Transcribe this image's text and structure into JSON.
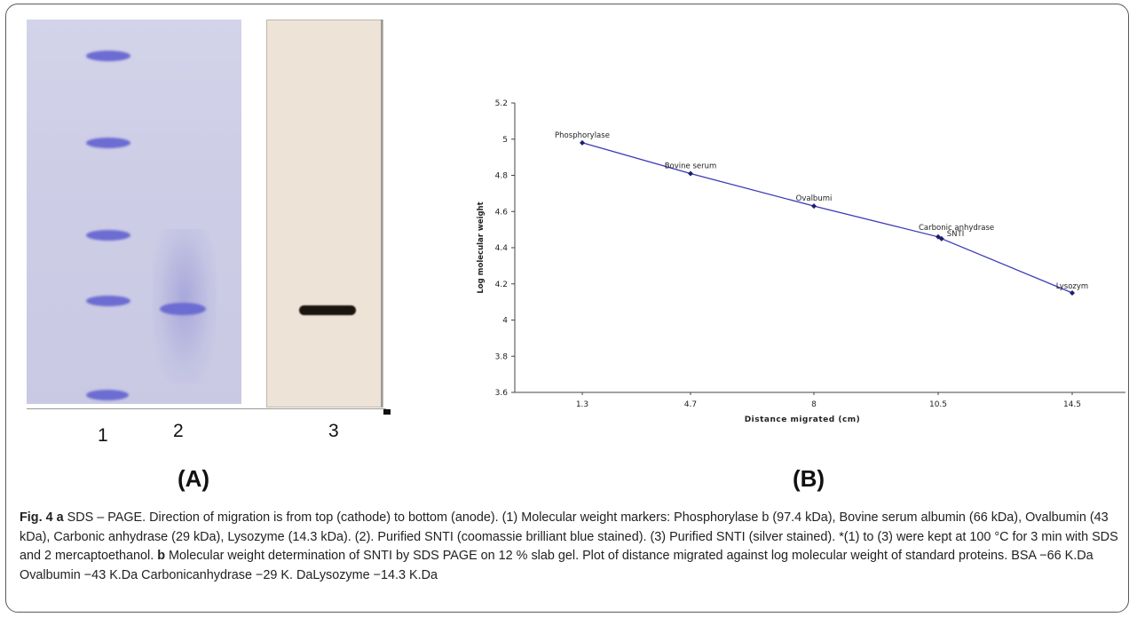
{
  "panels": {
    "a_lanes": [
      "1",
      "2",
      "3"
    ],
    "a_label": "(A)",
    "b_label": "(B)"
  },
  "chart_data": {
    "type": "line",
    "xlabel": "Distance migrated (cm)",
    "ylabel": "Log molecular weight",
    "x_tick_labels": [
      "1.3",
      "4.7",
      "8",
      "10.5",
      "14.5"
    ],
    "y_ticks": [
      "3.6",
      "3.8",
      "4",
      "4.2",
      "4.4",
      "4.6",
      "4.8",
      "5",
      "5.2"
    ],
    "ylim": [
      3.6,
      5.2
    ],
    "grid": false,
    "series": [
      {
        "points": [
          {
            "x": 1.3,
            "y": 4.98,
            "label": "Phosphorylase"
          },
          {
            "x": 4.7,
            "y": 4.81,
            "label": "Bovine serum"
          },
          {
            "x": 8,
            "y": 4.63,
            "label": "Ovalbumi"
          },
          {
            "x": 10.5,
            "y": 4.46,
            "label": "Carbonic anhydrase"
          },
          {
            "x": 10.6,
            "y": 4.45,
            "label": "SNTI"
          },
          {
            "x": 14.5,
            "y": 4.15,
            "label": "Lysozym"
          }
        ]
      }
    ]
  },
  "caption": {
    "fig_label": "Fig. 4",
    "a_marker": "a",
    "a_text": " SDS – PAGE. Direction of migration is from top (cathode) to bottom (anode). (1) Molecular weight markers: Phosphorylase b (97.4 kDa), Bovine serum albumin (66 kDa), Ovalbumin (43 kDa), Carbonic anhydrase (29 kDa), Lysozyme (14.3 kDa). (2). Purified SNTI (coomassie brilliant blue stained). (3) Purified SNTI (silver stained). *(1) to (3) were kept at 100 °C for 3 min with SDS and 2 mercaptoethanol. ",
    "b_marker": "b",
    "b_text": " Molecular weight determination of SNTI by SDS PAGE on 12 % slab gel. Plot of distance migrated against log molecular weight of standard proteins. BSA −66 K.Da Ovalbumin −43 K.Da Carbonicanhydrase −29 K. DaLysozyme −14.3 K.Da"
  }
}
